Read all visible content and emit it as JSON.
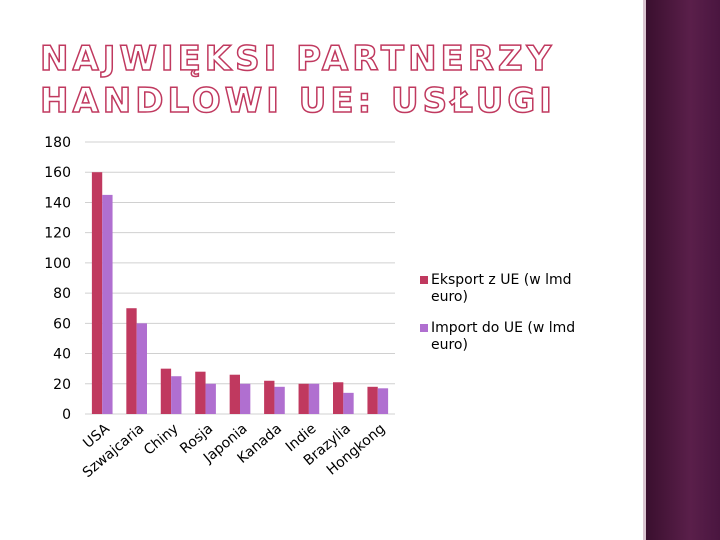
{
  "chart_data": {
    "type": "bar",
    "title": "NAJWIĘKSI PARTNERZY HANDLOWI UE: USŁUGI",
    "categories": [
      "USA",
      "Szwajcaria",
      "Chiny",
      "Rosja",
      "Japonia",
      "Kanada",
      "Indie",
      "Brazylia",
      "Hongkong"
    ],
    "series": [
      {
        "name": "Eksport z UE (w lmd euro)",
        "color": "#c0395f",
        "values": [
          160,
          70,
          30,
          28,
          26,
          22,
          20,
          21,
          18
        ]
      },
      {
        "name": "Import do UE (w lmd euro)",
        "color": "#b06fd0",
        "values": [
          145,
          60,
          25,
          20,
          20,
          18,
          20,
          14,
          17
        ]
      }
    ],
    "ylim": [
      0,
      180
    ],
    "yticks": [
      0,
      20,
      40,
      60,
      80,
      100,
      120,
      140,
      160,
      180
    ],
    "grid": true,
    "legend": "right"
  }
}
